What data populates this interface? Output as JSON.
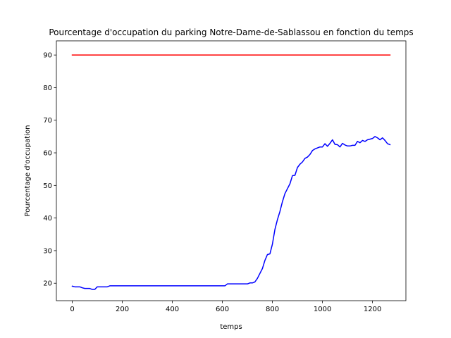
{
  "chart_data": {
    "type": "line",
    "title": "Pourcentage d'occupation du parking Notre-Dame-de-Sablassou en fonction du temps",
    "xlabel": "temps",
    "ylabel": "Pourcentage d'occupation",
    "xlim": [
      -63.5,
      1333.5
    ],
    "ylim": [
      14.65,
      94.35
    ],
    "xticks": [
      0,
      200,
      400,
      600,
      800,
      1000,
      1200
    ],
    "yticks": [
      20,
      30,
      40,
      50,
      60,
      70,
      80,
      90
    ],
    "grid": false,
    "series": [
      {
        "color": "#ff0000",
        "x": [
          0,
          1270
        ],
        "y": [
          90,
          90
        ]
      },
      {
        "color": "#0000ff",
        "x": [
          0,
          10,
          20,
          30,
          40,
          50,
          60,
          70,
          80,
          90,
          100,
          110,
          120,
          130,
          140,
          150,
          160,
          200,
          300,
          400,
          500,
          600,
          610,
          620,
          630,
          640,
          650,
          660,
          670,
          680,
          690,
          700,
          710,
          720,
          730,
          740,
          750,
          760,
          770,
          780,
          790,
          800,
          810,
          820,
          830,
          840,
          850,
          860,
          870,
          880,
          890,
          900,
          910,
          920,
          930,
          940,
          950,
          960,
          970,
          980,
          990,
          1000,
          1010,
          1020,
          1030,
          1040,
          1050,
          1060,
          1070,
          1080,
          1090,
          1100,
          1110,
          1120,
          1130,
          1140,
          1150,
          1160,
          1170,
          1180,
          1190,
          1200,
          1210,
          1220,
          1230,
          1240,
          1250,
          1260,
          1270
        ],
        "y": [
          19.1,
          18.9,
          18.9,
          18.9,
          18.6,
          18.4,
          18.4,
          18.4,
          18.1,
          18.1,
          18.9,
          18.9,
          18.9,
          18.9,
          18.9,
          19.2,
          19.2,
          19.2,
          19.2,
          19.2,
          19.2,
          19.2,
          19.2,
          19.8,
          19.8,
          19.8,
          19.8,
          19.8,
          19.8,
          19.8,
          19.8,
          19.8,
          20.1,
          20.1,
          20.4,
          21.5,
          23.0,
          24.5,
          27.0,
          28.8,
          29.0,
          32.0,
          36.5,
          39.5,
          42.0,
          45.0,
          47.5,
          49.0,
          50.5,
          53.0,
          53.1,
          55.5,
          56.5,
          57.2,
          58.3,
          58.7,
          59.5,
          60.7,
          61.2,
          61.5,
          61.8,
          61.8,
          62.8,
          62.0,
          62.9,
          64.0,
          62.6,
          62.5,
          61.8,
          62.9,
          62.4,
          62.1,
          62.1,
          62.3,
          62.3,
          63.5,
          63.1,
          63.8,
          63.5,
          64.0,
          64.2,
          64.4,
          65.0,
          64.6,
          64.0,
          64.6,
          63.8,
          62.8,
          62.5
        ]
      }
    ]
  }
}
